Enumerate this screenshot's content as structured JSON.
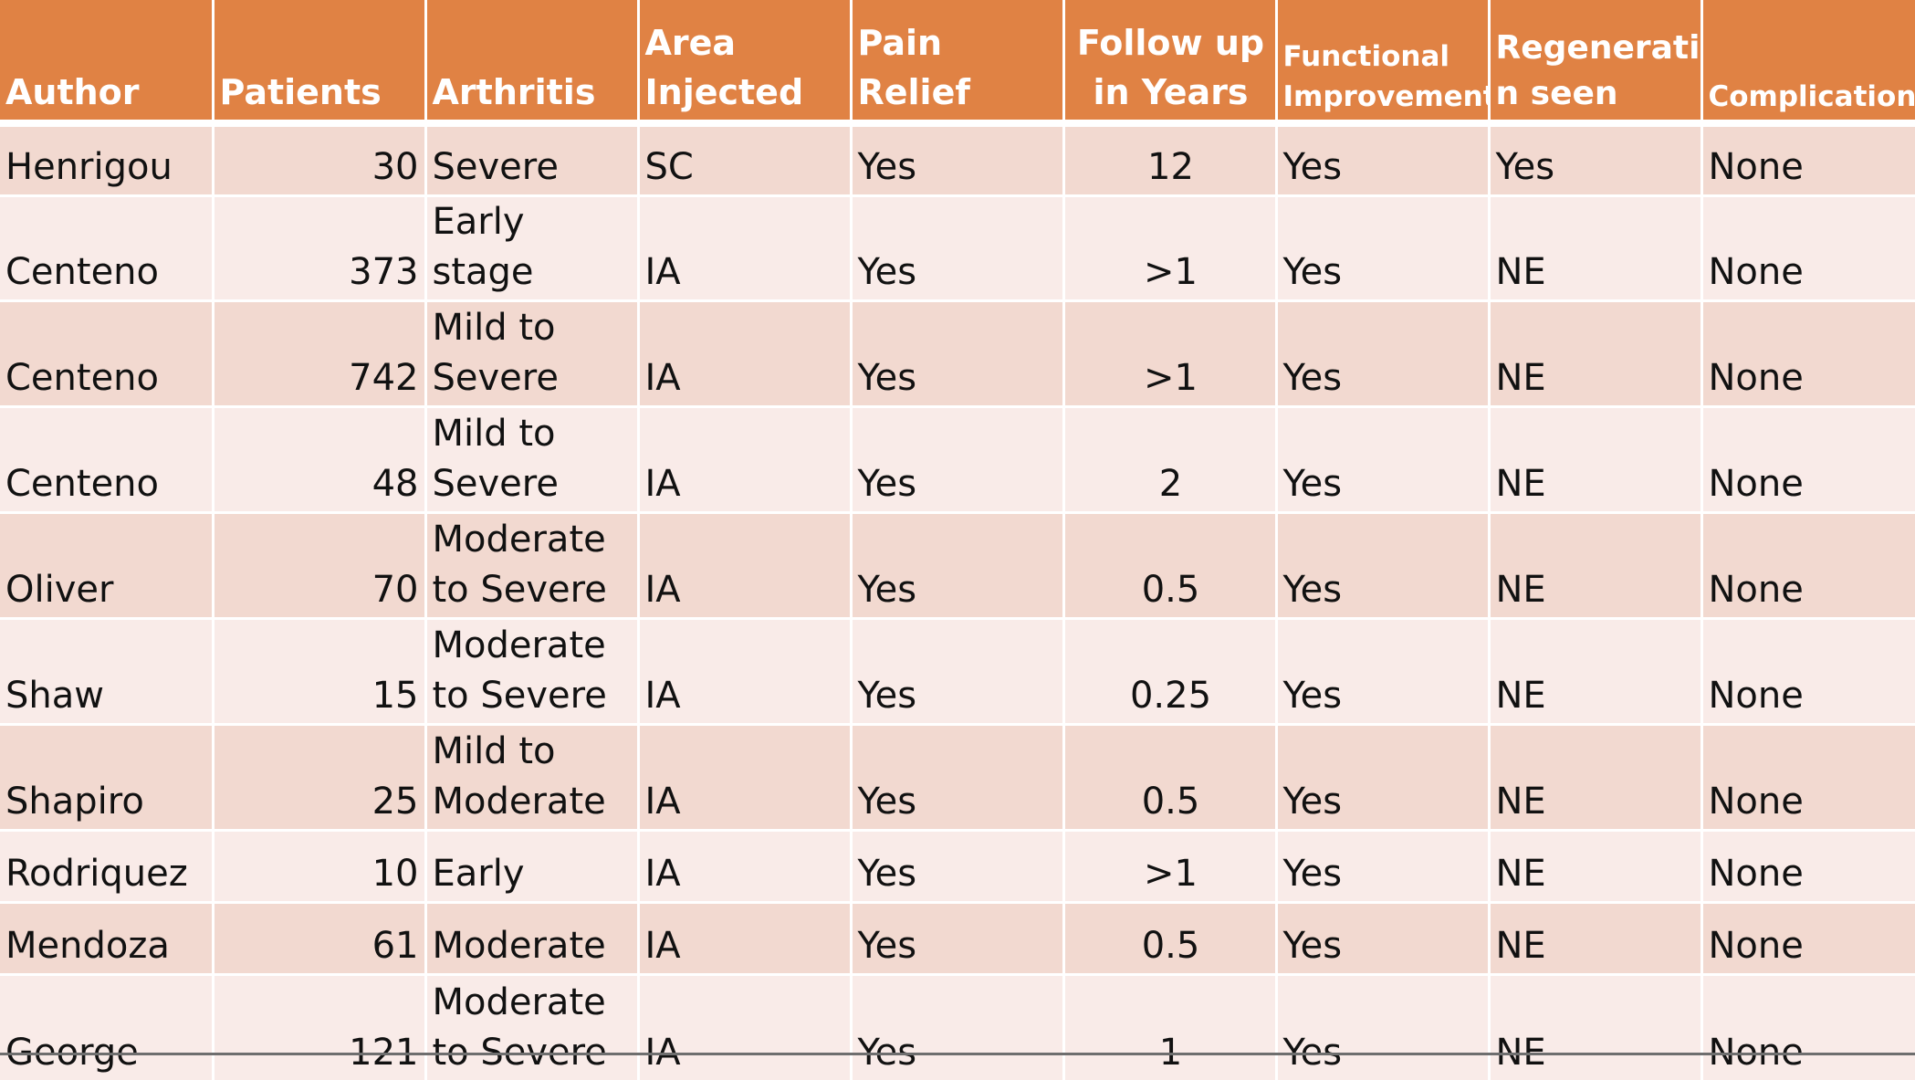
{
  "headers": [
    "Author",
    "Patients",
    "Arthritis",
    "Area\nInjected",
    "Pain Relief",
    "Follow up\nin Years",
    "Functional\nImprovement",
    "Regeneratio\nn seen",
    "Complications"
  ],
  "rows": [
    {
      "author": "Henrigou",
      "patients": "30",
      "arthritis": "Severe",
      "area": "SC",
      "pain": "Yes",
      "followup": "12",
      "functional": "Yes",
      "regeneration": "Yes",
      "complications": "None"
    },
    {
      "author": "Centeno",
      "patients": "373",
      "arthritis": "Early stage",
      "area": "IA",
      "pain": "Yes",
      "followup": ">1",
      "functional": "Yes",
      "regeneration": "NE",
      "complications": "None"
    },
    {
      "author": "Centeno",
      "patients": "742",
      "arthritis": "Mild to\nSevere",
      "area": "IA",
      "pain": "Yes",
      "followup": ">1",
      "functional": "Yes",
      "regeneration": "NE",
      "complications": "None"
    },
    {
      "author": "Centeno",
      "patients": "48",
      "arthritis": "Mild to\nSevere",
      "area": "IA",
      "pain": "Yes",
      "followup": "2",
      "functional": "Yes",
      "regeneration": "NE",
      "complications": "None"
    },
    {
      "author": "Oliver",
      "patients": "70",
      "arthritis": "Moderate\nto Severe",
      "area": "IA",
      "pain": "Yes",
      "followup": "0.5",
      "functional": "Yes",
      "regeneration": "NE",
      "complications": "None"
    },
    {
      "author": "Shaw",
      "patients": "15",
      "arthritis": "Moderate\nto Severe",
      "area": "IA",
      "pain": "Yes",
      "followup": "0.25",
      "functional": "Yes",
      "regeneration": "NE",
      "complications": "None"
    },
    {
      "author": "Shapiro",
      "patients": "25",
      "arthritis": "Mild to\nModerate",
      "area": "IA",
      "pain": "Yes",
      "followup": "0.5",
      "functional": "Yes",
      "regeneration": "NE",
      "complications": "None"
    },
    {
      "author": "Rodriquez",
      "patients": "10",
      "arthritis": "Early",
      "area": "IA",
      "pain": "Yes",
      "followup": ">1",
      "functional": "Yes",
      "regeneration": "NE",
      "complications": "None"
    },
    {
      "author": "Mendoza",
      "patients": "61",
      "arthritis": "Moderate",
      "area": "IA",
      "pain": "Yes",
      "followup": "0.5",
      "functional": "Yes",
      "regeneration": "NE",
      "complications": "None"
    },
    {
      "author": "George",
      "patients": "121",
      "arthritis": "Moderate\nto Severe",
      "area": "IA",
      "pain": "Yes",
      "followup": "1",
      "functional": "Yes",
      "regeneration": "NE",
      "complications": "None"
    }
  ],
  "colors": {
    "header": "#e08244",
    "row_odd": "#f2d9d0",
    "row_even": "#f9ebe8"
  }
}
